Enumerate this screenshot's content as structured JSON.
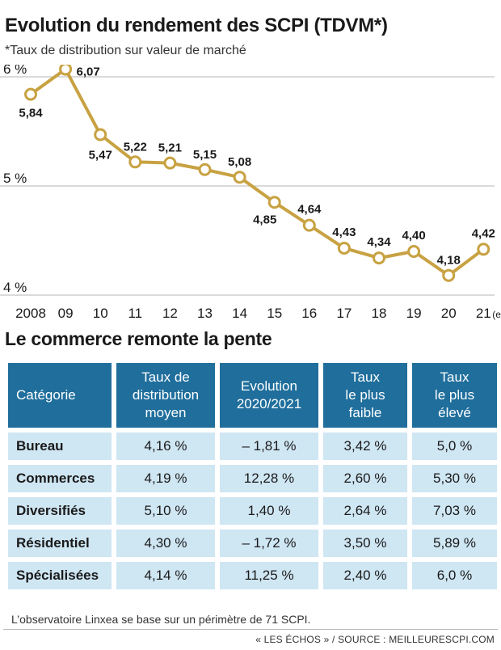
{
  "header": {
    "title": "Evolution du rendement des SCPI (TDVM*)",
    "subtitle": "*Taux de distribution sur valeur de marché"
  },
  "chart_data": {
    "type": "line",
    "title": "Evolution du rendement des SCPI (TDVM*)",
    "subtitle": "*Taux de distribution sur valeur de marché",
    "x": [
      "2008",
      "09",
      "10",
      "11",
      "12",
      "13",
      "14",
      "15",
      "16",
      "17",
      "18",
      "19",
      "20",
      "21"
    ],
    "x_suffix": "(e)",
    "values": [
      5.84,
      6.07,
      5.47,
      5.22,
      5.21,
      5.15,
      5.08,
      4.85,
      4.64,
      4.43,
      4.34,
      4.4,
      4.18,
      4.42
    ],
    "value_labels": [
      "5,84",
      "6,07",
      "5,47",
      "5,22",
      "5,21",
      "5,15",
      "5,08",
      "4,85",
      "4,64",
      "4,43",
      "4,34",
      "4,40",
      "4,18",
      "4,42"
    ],
    "yticks": [
      4,
      5,
      6
    ],
    "ytick_labels": [
      "4 %",
      "5 %",
      "6 %"
    ],
    "ylim": [
      4,
      6.1
    ],
    "grid": true,
    "line_color": "#c8a242"
  },
  "table": {
    "title": "Le commerce remonte la pente",
    "headers": [
      [
        "Catégorie"
      ],
      [
        "Taux de",
        "distribution",
        "moyen"
      ],
      [
        "Evolution",
        "2020/2021"
      ],
      [
        "Taux",
        "le plus",
        "faible"
      ],
      [
        "Taux",
        "le plus",
        "élevé"
      ]
    ],
    "rows": [
      [
        "Bureau",
        "4,16 %",
        "– 1,81 %",
        "3,42 %",
        "5,0 %"
      ],
      [
        "Commerces",
        "4,19 %",
        "12,28 %",
        "2,60 %",
        "5,30 %"
      ],
      [
        "Diversifiés",
        "5,10 %",
        "1,40 %",
        "2,64 %",
        "7,03 %"
      ],
      [
        "Résidentiel",
        "4,30 %",
        "– 1,72 %",
        "3,50 %",
        "5,89 %"
      ],
      [
        "Spécialisées",
        "4,14 %",
        "11,25 %",
        "2,40 %",
        "6,0 %"
      ]
    ],
    "header_color": "#1f6e9c",
    "row_color": "#cfe6f3"
  },
  "footer": {
    "note": "L’observatoire Linxea se base sur un périmètre de 71 SCPI.",
    "source": "« LES ÉCHOS » / SOURCE : MEILLEURESCPI.COM"
  }
}
